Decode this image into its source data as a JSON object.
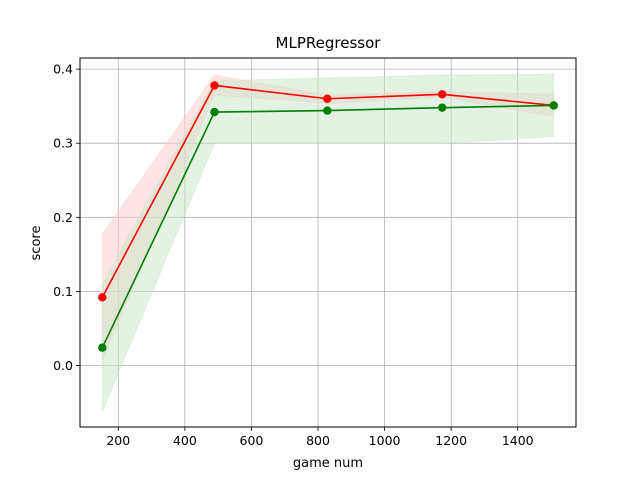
{
  "chart_data": {
    "type": "line",
    "title": "MLPRegressor",
    "xlabel": "game num",
    "ylabel": "score",
    "xlim": [
      85,
      1575
    ],
    "ylim": [
      -0.083,
      0.415
    ],
    "xticks": [
      200,
      400,
      600,
      800,
      1000,
      1200,
      1400
    ],
    "yticks": [
      0.0,
      0.1,
      0.2,
      0.3,
      0.4
    ],
    "xtick_labels": [
      "200",
      "400",
      "600",
      "800",
      "1000",
      "1200",
      "1400"
    ],
    "ytick_labels": [
      "0.0",
      "0.1",
      "0.2",
      "0.3",
      "0.4"
    ],
    "grid": true,
    "legend": "none",
    "x": [
      152,
      489,
      828,
      1173,
      1508
    ],
    "series": [
      {
        "color": "#ff0000",
        "band_color": "#ffcccc",
        "values": [
          0.092,
          0.378,
          0.36,
          0.366,
          0.351
        ],
        "lower": [
          0.007,
          0.365,
          0.354,
          0.362,
          0.336
        ],
        "upper": [
          0.177,
          0.392,
          0.365,
          0.37,
          0.366
        ]
      },
      {
        "color": "#008000",
        "band_color": "#c8e6c8",
        "values": [
          0.024,
          0.342,
          0.344,
          0.348,
          0.351
        ],
        "lower": [
          -0.062,
          0.3,
          0.3,
          0.3,
          0.309
        ],
        "upper": [
          0.11,
          0.384,
          0.388,
          0.392,
          0.393
        ]
      }
    ]
  }
}
